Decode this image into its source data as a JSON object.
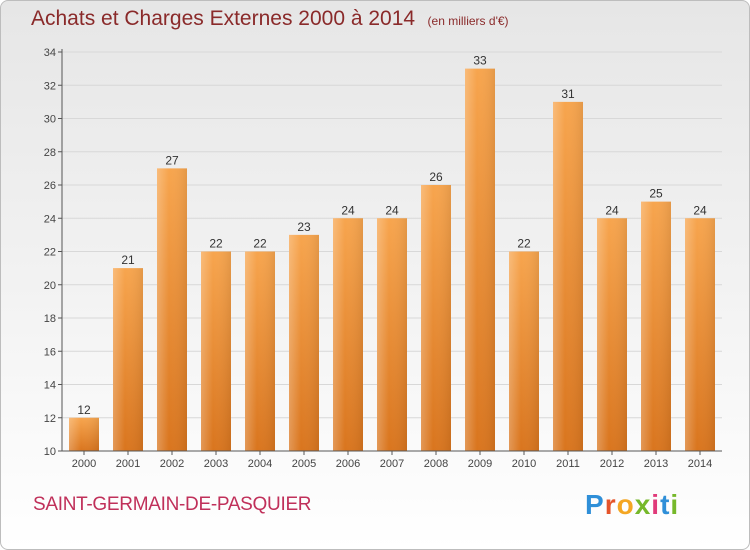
{
  "chart_data": {
    "type": "bar",
    "title": "Achats et Charges Externes 2000 à 2014",
    "subtitle": "(en milliers d'€)",
    "xlabel": "",
    "ylabel": "",
    "categories": [
      "2000",
      "2001",
      "2002",
      "2003",
      "2004",
      "2005",
      "2006",
      "2007",
      "2008",
      "2009",
      "2010",
      "2011",
      "2012",
      "2013",
      "2014"
    ],
    "values": [
      12,
      21,
      27,
      22,
      22,
      23,
      24,
      24,
      26,
      33,
      22,
      31,
      24,
      25,
      24
    ],
    "ylim": [
      10,
      34
    ],
    "yticks": [
      10,
      12,
      14,
      16,
      18,
      20,
      22,
      24,
      26,
      28,
      30,
      32,
      34
    ],
    "grid": true,
    "bar_color": "#f0902e",
    "label_color": "#333333"
  },
  "footer": {
    "commune": "SAINT-GERMAIN-DE-PASQUIER",
    "brand": "Proxiti"
  }
}
